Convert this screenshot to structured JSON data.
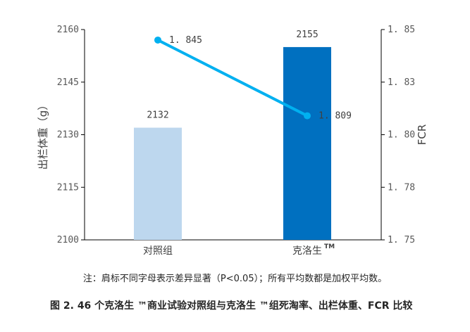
{
  "chart_data": {
    "type": "bar+line",
    "categories": [
      "对照组",
      "克洛生"
    ],
    "category_superscripts": [
      "",
      "TM"
    ],
    "bars": {
      "values": [
        2132,
        2155
      ],
      "colors": [
        "#bdd7ee",
        "#0070c0"
      ],
      "labels": [
        "2132",
        "2155"
      ]
    },
    "line": {
      "values": [
        1.845,
        1.809
      ],
      "labels": [
        "1. 845",
        "1. 809"
      ],
      "color": "#00b0f0"
    },
    "y_left": {
      "label": "出栏体重（g）",
      "ylim": [
        2100,
        2160
      ],
      "ticks": [
        2100,
        2115,
        2130,
        2145,
        2160
      ],
      "tick_labels": [
        "2100",
        "2115",
        "2130",
        "2145",
        "2160"
      ]
    },
    "y_right": {
      "label": "FCR",
      "ylim": [
        1.75,
        1.85
      ],
      "ticks": [
        1.75,
        1.775,
        1.8,
        1.825,
        1.85
      ],
      "tick_labels": [
        "1. 75",
        "1. 78",
        "1. 80",
        "1. 83",
        "1. 85"
      ]
    },
    "grid": false
  },
  "note": "注：肩标不同字母表示差异显著（P<0.05）；所有平均数都是加权平均数。",
  "caption": {
    "prefix": "图 2.",
    "text": "46 个克洛生 ™商业试验对照组与克洛生 ™组死淘率、出栏体重、FCR 比较"
  }
}
